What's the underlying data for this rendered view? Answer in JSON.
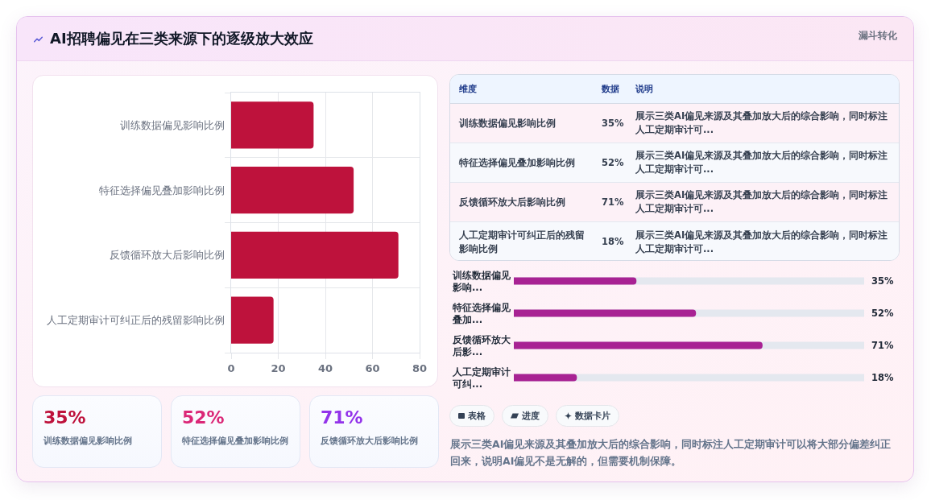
{
  "chart_data": [
    {
      "type": "other",
      "title": "AI招聘偏见在三类来源下的逐级放大效应",
      "annotations": [
        "漏斗转化"
      ]
    },
    {
      "type": "bar",
      "orientation": "horizontal",
      "categories": [
        "训练数据偏见影响比例",
        "特征选择偏见叠加影响比例",
        "反馈循环放大后影响比例",
        "人工定期审计可纠正后的残留影响比例"
      ],
      "values": [
        35,
        52,
        71,
        18
      ],
      "color": "#be123c",
      "xlim": [
        0,
        80
      ],
      "xticks": [
        0,
        20,
        40,
        60,
        80
      ],
      "grid": true
    },
    {
      "type": "other",
      "categories": [
        "训练数据偏见影响比例",
        "特征选择偏见叠加影响比例",
        "反馈循环放大后影响比例"
      ],
      "values": [
        35,
        52,
        71
      ],
      "value_labels": [
        "35%",
        "52%",
        "71%"
      ]
    },
    {
      "type": "other",
      "ylabel": "维度",
      "categories": [
        "数据",
        "说明"
      ],
      "y_categories": [
        "训练数据偏见影响比例",
        "特征选择偏见叠加影响比例",
        "反馈循环放大后影响比例",
        "人工定期审计可纠正后的残留影响比例"
      ],
      "cell_labels": [
        [
          "35%",
          "展示三类AI偏见来源及其叠加放大后的综合影响，同时标注人工定期审计可..."
        ],
        [
          "52%",
          "展示三类AI偏见来源及其叠加放大后的综合影响，同时标注人工定期审计可..."
        ],
        [
          "71%",
          "展示三类AI偏见来源及其叠加放大后的综合影响，同时标注人工定期审计可..."
        ],
        [
          "18%",
          "展示三类AI偏见来源及其叠加放大后的综合影响，同时标注人工定期审计可..."
        ]
      ]
    },
    {
      "type": "bar",
      "orientation": "horizontal",
      "categories": [
        "训练数据偏见影响...",
        "特征选择偏见叠加...",
        "反馈循环放大后影...",
        "人工定期审计可纠..."
      ],
      "values": [
        35,
        52,
        71,
        18
      ],
      "value_labels": [
        "35%",
        "52%",
        "71%",
        "18%"
      ],
      "color": "#a82293",
      "xlim": [
        0,
        100
      ],
      "tick_labels": "y"
    },
    {
      "type": "other",
      "annotations": [
        "表格",
        "进度",
        "数据卡片",
        "展示三类AI偏见来源及其叠加放大后的综合影响，同时标注人工定期审计可以将大部分偏差纠正回来，说明AI偏见不是无解的，但需要机制保障。"
      ]
    }
  ]
}
